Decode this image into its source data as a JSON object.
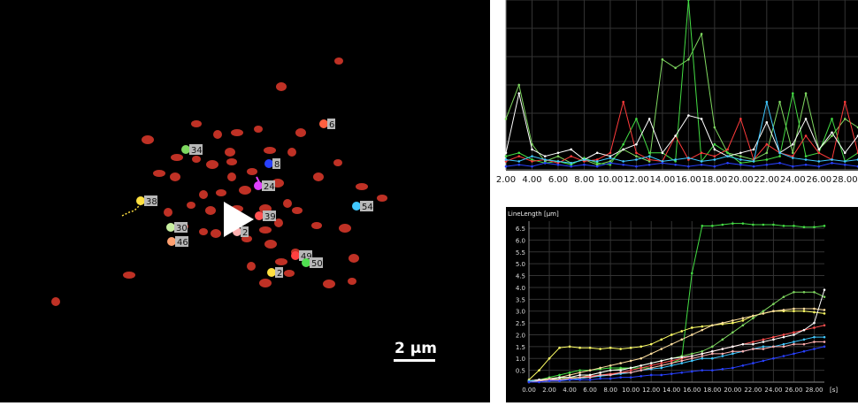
{
  "scale_label": "2 µm",
  "track_labels": [
    {
      "text": "6",
      "color": "#ff6040"
    },
    {
      "text": "34",
      "color": "#7fd860"
    },
    {
      "text": "8",
      "color": "#2840ff"
    },
    {
      "text": "24",
      "color": "#e040ff"
    },
    {
      "text": "38",
      "color": "#ffe040"
    },
    {
      "text": "39",
      "color": "#ff5050"
    },
    {
      "text": "2",
      "color": "#ffb0b0"
    },
    {
      "text": "30",
      "color": "#c8f0a0"
    },
    {
      "text": "46",
      "color": "#ffa070"
    },
    {
      "text": "54",
      "color": "#40c8ff"
    },
    {
      "text": "49",
      "color": "#ff4040"
    },
    {
      "text": "50",
      "color": "#50e050"
    },
    {
      "text": "2",
      "color": "#ffe040"
    }
  ],
  "chart_data": [
    {
      "type": "line",
      "title": "",
      "xlabel": "",
      "ylabel": "",
      "x_ticks": [
        "2.00",
        "4.00",
        "6.00",
        "8.00",
        "10.00",
        "12.00",
        "14.00",
        "16.00",
        "18.00",
        "20.00",
        "22.00",
        "24.00",
        "26.00",
        "28.00"
      ],
      "xlim": [
        2,
        29
      ],
      "ylim": [
        0,
        1
      ],
      "grid": true,
      "x": [
        2,
        3,
        4,
        5,
        6,
        7,
        8,
        9,
        10,
        11,
        12,
        13,
        14,
        15,
        16,
        17,
        18,
        19,
        20,
        21,
        22,
        23,
        24,
        25,
        26,
        27,
        28,
        29
      ],
      "series": [
        {
          "color": "#7fd860",
          "values": [
            0.3,
            0.5,
            0.15,
            0.05,
            0.08,
            0.04,
            0.06,
            0.03,
            0.05,
            0.12,
            0.08,
            0.05,
            0.65,
            0.6,
            0.65,
            0.8,
            0.25,
            0.1,
            0.08,
            0.06,
            0.1,
            0.4,
            0.1,
            0.45,
            0.12,
            0.2,
            0.3,
            0.25
          ]
        },
        {
          "color": "#44dd44",
          "values": [
            0.08,
            0.1,
            0.06,
            0.04,
            0.05,
            0.03,
            0.07,
            0.04,
            0.03,
            0.15,
            0.3,
            0.1,
            0.1,
            0.05,
            1.0,
            0.05,
            0.15,
            0.1,
            0.04,
            0.05,
            0.06,
            0.08,
            0.45,
            0.08,
            0.1,
            0.3,
            0.05,
            0.1
          ]
        },
        {
          "color": "#ff3b3b",
          "values": [
            0.05,
            0.08,
            0.05,
            0.06,
            0.04,
            0.08,
            0.05,
            0.06,
            0.1,
            0.4,
            0.1,
            0.06,
            0.05,
            0.2,
            0.06,
            0.1,
            0.08,
            0.12,
            0.3,
            0.06,
            0.15,
            0.1,
            0.08,
            0.2,
            0.1,
            0.06,
            0.4,
            0.1
          ]
        },
        {
          "color": "#ffffff",
          "values": [
            0.1,
            0.45,
            0.12,
            0.08,
            0.1,
            0.12,
            0.06,
            0.1,
            0.08,
            0.12,
            0.15,
            0.3,
            0.1,
            0.2,
            0.32,
            0.3,
            0.12,
            0.08,
            0.1,
            0.12,
            0.28,
            0.1,
            0.15,
            0.3,
            0.12,
            0.22,
            0.1,
            0.2
          ]
        },
        {
          "color": "#40c8ff",
          "values": [
            0.06,
            0.05,
            0.08,
            0.06,
            0.05,
            0.04,
            0.06,
            0.05,
            0.07,
            0.05,
            0.06,
            0.08,
            0.05,
            0.06,
            0.07,
            0.05,
            0.06,
            0.08,
            0.06,
            0.05,
            0.4,
            0.1,
            0.07,
            0.06,
            0.05,
            0.06,
            0.05,
            0.06
          ]
        },
        {
          "color": "#2840ff",
          "values": [
            0.02,
            0.03,
            0.02,
            0.04,
            0.03,
            0.02,
            0.03,
            0.02,
            0.04,
            0.03,
            0.02,
            0.03,
            0.04,
            0.03,
            0.02,
            0.03,
            0.02,
            0.04,
            0.03,
            0.02,
            0.03,
            0.04,
            0.02,
            0.03,
            0.02,
            0.04,
            0.03,
            0.02
          ]
        }
      ]
    },
    {
      "type": "line",
      "title": "",
      "xlabel": "[s]",
      "ylabel": "LineLength [µm]",
      "x_ticks": [
        "0.00",
        "2.00",
        "4.00",
        "6.00",
        "8.00",
        "10.00",
        "12.00",
        "14.00",
        "16.00",
        "18.00",
        "20.00",
        "22.00",
        "24.00",
        "26.00",
        "28.00"
      ],
      "y_ticks": [
        "0.5",
        "1.0",
        "1.5",
        "2.0",
        "2.5",
        "3.0",
        "3.5",
        "4.0",
        "4.5",
        "5.0",
        "5.5",
        "6.0",
        "6.5"
      ],
      "xlim": [
        0,
        29
      ],
      "ylim": [
        0,
        6.8
      ],
      "grid": true,
      "x": [
        0,
        1,
        2,
        3,
        4,
        5,
        6,
        7,
        8,
        9,
        10,
        11,
        12,
        13,
        14,
        15,
        16,
        17,
        18,
        19,
        20,
        21,
        22,
        23,
        24,
        25,
        26,
        27,
        28,
        29
      ],
      "series": [
        {
          "color": "#44dd44",
          "values": [
            0.05,
            0.1,
            0.2,
            0.3,
            0.4,
            0.5,
            0.5,
            0.55,
            0.6,
            0.6,
            0.6,
            0.6,
            0.6,
            0.7,
            0.8,
            1.0,
            4.6,
            6.6,
            6.6,
            6.65,
            6.7,
            6.7,
            6.65,
            6.65,
            6.65,
            6.6,
            6.6,
            6.55,
            6.55,
            6.6
          ]
        },
        {
          "color": "#ffff66",
          "values": [
            0.1,
            0.5,
            1.0,
            1.45,
            1.5,
            1.45,
            1.45,
            1.4,
            1.45,
            1.4,
            1.45,
            1.5,
            1.6,
            1.8,
            2.0,
            2.15,
            2.3,
            2.35,
            2.4,
            2.45,
            2.5,
            2.6,
            2.8,
            2.9,
            3.0,
            3.0,
            3.0,
            3.0,
            2.95,
            2.9
          ]
        },
        {
          "color": "#7fd860",
          "values": [
            0.05,
            0.1,
            0.1,
            0.15,
            0.2,
            0.2,
            0.3,
            0.4,
            0.5,
            0.55,
            0.6,
            0.7,
            0.8,
            0.9,
            1.0,
            1.1,
            1.2,
            1.3,
            1.5,
            1.8,
            2.1,
            2.4,
            2.7,
            3.0,
            3.3,
            3.6,
            3.8,
            3.8,
            3.8,
            3.6
          ]
        },
        {
          "color": "#ffe0a0",
          "values": [
            0.05,
            0.1,
            0.15,
            0.2,
            0.3,
            0.4,
            0.5,
            0.6,
            0.7,
            0.8,
            0.9,
            1.0,
            1.2,
            1.4,
            1.6,
            1.8,
            2.0,
            2.2,
            2.4,
            2.5,
            2.6,
            2.7,
            2.8,
            2.9,
            3.0,
            3.05,
            3.1,
            3.1,
            3.1,
            3.05
          ]
        },
        {
          "color": "#ff5050",
          "values": [
            0.05,
            0.05,
            0.1,
            0.1,
            0.15,
            0.2,
            0.25,
            0.3,
            0.35,
            0.4,
            0.5,
            0.6,
            0.7,
            0.8,
            0.9,
            1.0,
            1.1,
            1.2,
            1.3,
            1.4,
            1.5,
            1.6,
            1.7,
            1.8,
            1.9,
            2.0,
            2.1,
            2.2,
            2.3,
            2.4
          ]
        },
        {
          "color": "#ffffff",
          "values": [
            0.05,
            0.1,
            0.1,
            0.2,
            0.2,
            0.3,
            0.3,
            0.4,
            0.5,
            0.5,
            0.6,
            0.7,
            0.8,
            0.9,
            1.0,
            1.05,
            1.1,
            1.2,
            1.3,
            1.4,
            1.5,
            1.6,
            1.6,
            1.7,
            1.8,
            1.9,
            2.0,
            2.2,
            2.5,
            3.9
          ]
        },
        {
          "color": "#40c8ff",
          "values": [
            0.05,
            0.05,
            0.1,
            0.1,
            0.1,
            0.15,
            0.2,
            0.25,
            0.3,
            0.35,
            0.4,
            0.5,
            0.55,
            0.6,
            0.7,
            0.8,
            0.9,
            1.0,
            1.0,
            1.1,
            1.2,
            1.3,
            1.4,
            1.5,
            1.5,
            1.6,
            1.7,
            1.8,
            1.9,
            1.9
          ]
        },
        {
          "color": "#ffb0b0",
          "values": [
            0.0,
            0.05,
            0.1,
            0.1,
            0.15,
            0.2,
            0.2,
            0.3,
            0.3,
            0.4,
            0.4,
            0.5,
            0.6,
            0.7,
            0.8,
            0.9,
            1.0,
            1.1,
            1.2,
            1.2,
            1.3,
            1.3,
            1.4,
            1.4,
            1.5,
            1.5,
            1.6,
            1.6,
            1.7,
            1.7
          ]
        },
        {
          "color": "#2840ff",
          "values": [
            0.0,
            0.0,
            0.05,
            0.05,
            0.1,
            0.1,
            0.1,
            0.15,
            0.15,
            0.2,
            0.2,
            0.25,
            0.3,
            0.3,
            0.35,
            0.4,
            0.45,
            0.5,
            0.5,
            0.55,
            0.6,
            0.7,
            0.8,
            0.9,
            1.0,
            1.1,
            1.2,
            1.3,
            1.4,
            1.5
          ]
        }
      ]
    }
  ]
}
